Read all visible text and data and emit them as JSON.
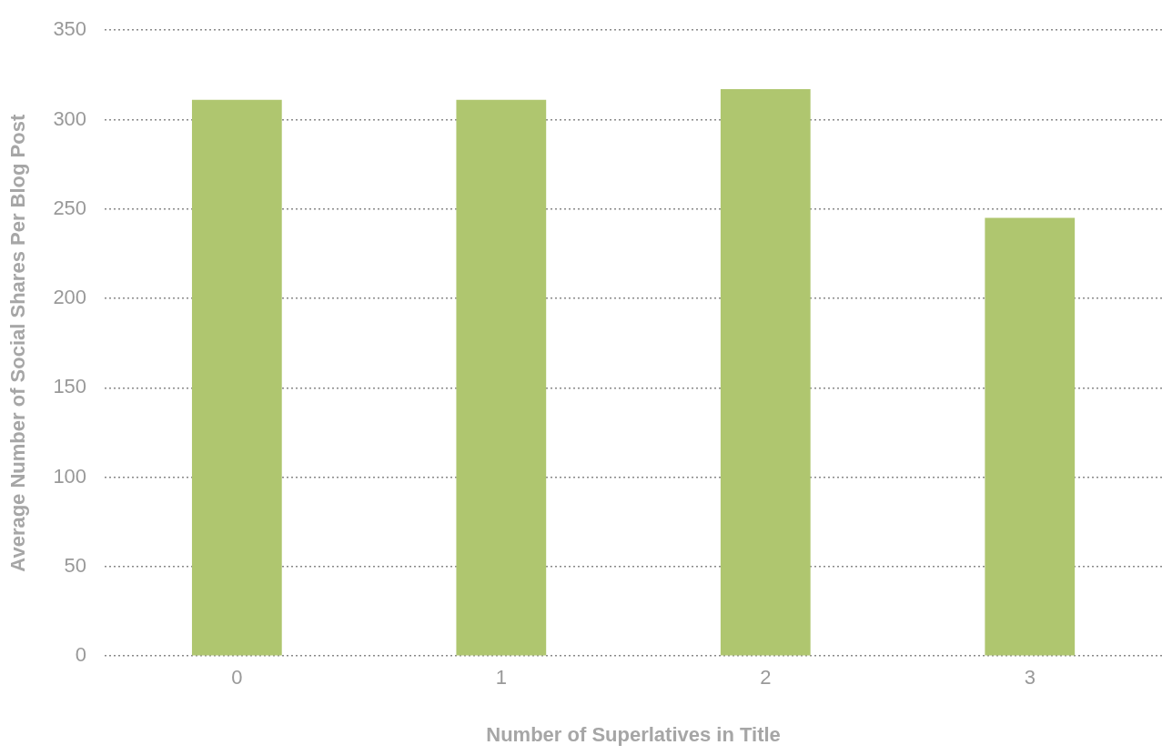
{
  "chart_data": {
    "type": "bar",
    "xlabel": "Number of Superlatives in Title",
    "ylabel": "Average Number of Social Shares Per Blog Post",
    "categories": [
      "0",
      "1",
      "2",
      "3"
    ],
    "values": [
      311,
      311,
      317,
      245
    ],
    "color": "#afc66f",
    "ylim": [
      0,
      350
    ],
    "yticks": [
      0,
      50,
      100,
      150,
      200,
      250,
      300,
      350
    ],
    "grid": "y",
    "legend": false
  }
}
